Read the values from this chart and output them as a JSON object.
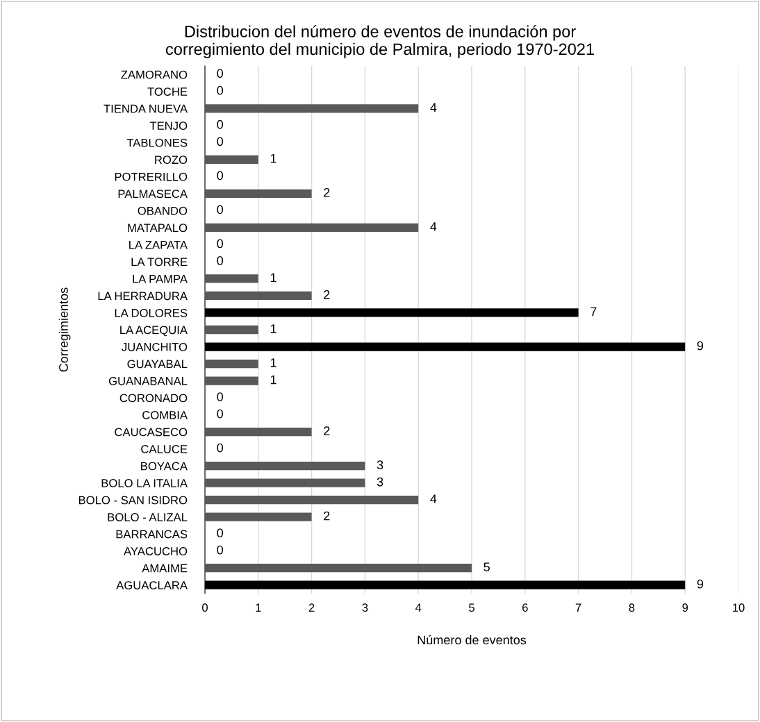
{
  "chart_data": {
    "type": "bar",
    "orientation": "horizontal",
    "title": "Distribucion del número de eventos de inundación por\ncorregimiento del municipio de Palmira, periodo 1970-2021",
    "xlabel": "Número de eventos",
    "ylabel": "Corregimientos",
    "categories": [
      "ZAMORANO",
      "TOCHE",
      "TIENDA NUEVA",
      "TENJO",
      "TABLONES",
      "ROZO",
      "POTRERILLO",
      "PALMASECA",
      "OBANDO",
      "MATAPALO",
      "LA ZAPATA",
      "LA TORRE",
      "LA PAMPA",
      "LA HERRADURA",
      "LA DOLORES",
      "LA ACEQUIA",
      "JUANCHITO",
      "GUAYABAL",
      "GUANABANAL",
      "CORONADO",
      "COMBIA",
      "CAUCASECO",
      "CALUCE",
      "BOYACA",
      "BOLO LA ITALIA",
      "BOLO - SAN ISIDRO",
      "BOLO - ALIZAL",
      "BARRANCAS",
      "AYACUCHO",
      "AMAIME",
      "AGUACLARA"
    ],
    "values": [
      0,
      0,
      4,
      0,
      0,
      1,
      0,
      2,
      0,
      4,
      0,
      0,
      1,
      2,
      7,
      1,
      9,
      1,
      1,
      0,
      0,
      2,
      0,
      3,
      3,
      4,
      2,
      0,
      0,
      5,
      9
    ],
    "colors": [
      "#595959",
      "#595959",
      "#595959",
      "#595959",
      "#595959",
      "#595959",
      "#595959",
      "#595959",
      "#595959",
      "#595959",
      "#595959",
      "#595959",
      "#595959",
      "#595959",
      "#000000",
      "#595959",
      "#000000",
      "#595959",
      "#595959",
      "#595959",
      "#595959",
      "#595959",
      "#595959",
      "#595959",
      "#595959",
      "#595959",
      "#595959",
      "#595959",
      "#595959",
      "#595959",
      "#000000"
    ],
    "xlim": [
      0,
      10
    ],
    "xticks": [
      0,
      1,
      2,
      3,
      4,
      5,
      6,
      7,
      8,
      9,
      10
    ],
    "grid": "x",
    "data_labels": true
  }
}
